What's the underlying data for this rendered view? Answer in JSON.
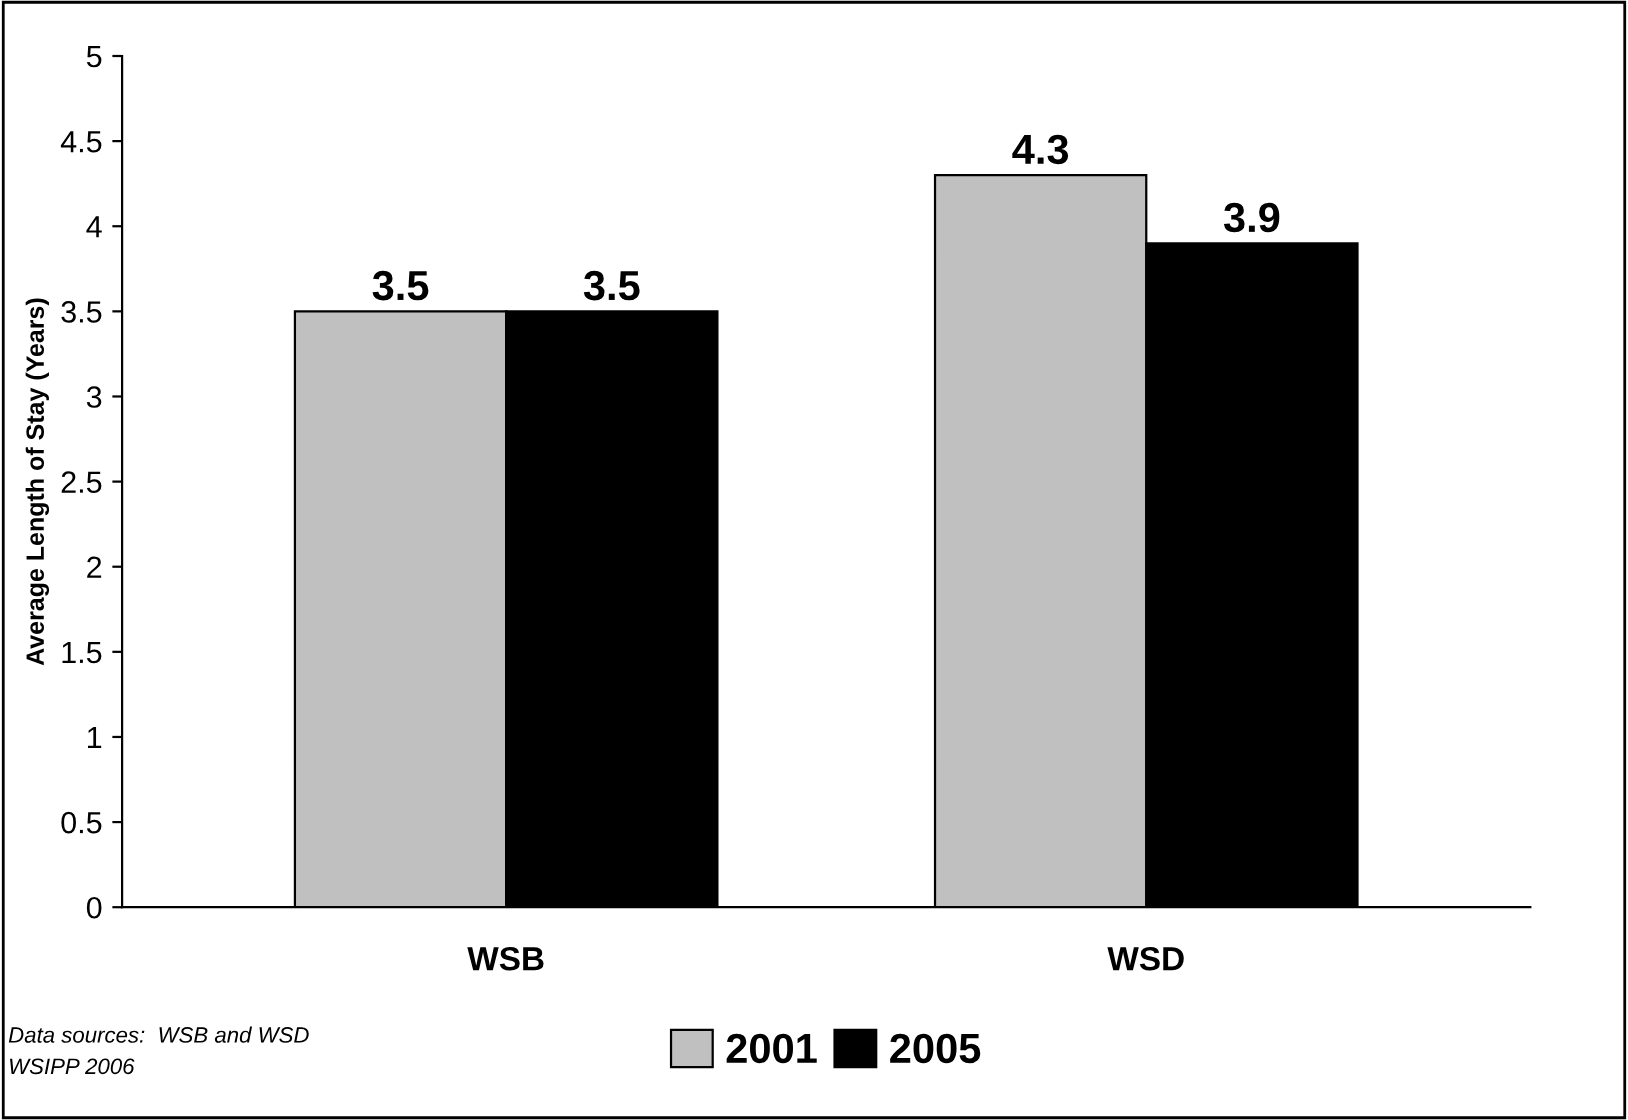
{
  "chart_data": {
    "type": "bar",
    "ylabel": "Average Length of Stay (Years)",
    "categories": [
      "WSB",
      "WSD"
    ],
    "series": [
      {
        "name": "2001",
        "color": "#c0c0c0",
        "values": [
          3.5,
          4.3
        ]
      },
      {
        "name": "2005",
        "color": "#000000",
        "values": [
          3.5,
          3.9
        ]
      }
    ],
    "ylim": [
      0,
      5
    ],
    "yticks": [
      0,
      0.5,
      1,
      1.5,
      2,
      2.5,
      3,
      3.5,
      4,
      4.5,
      5
    ],
    "data_labels": true,
    "legend": "bottom",
    "grid": false,
    "annotations": [
      "Data sources:  WSB and WSD",
      "WSIPP 2006"
    ]
  }
}
